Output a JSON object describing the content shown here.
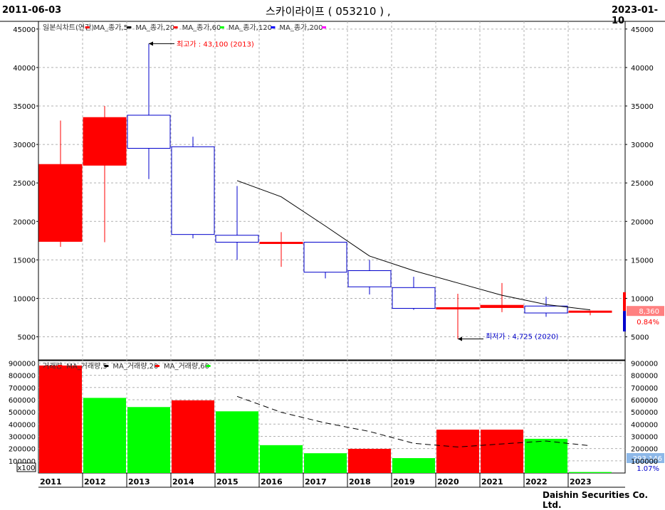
{
  "header": {
    "start_date": "2011-06-03",
    "title": "스카이라이프 ( 053210 ) ,",
    "end_date": "2023-01-10"
  },
  "footer": {
    "credit": "Daishin Securities Co. Ltd."
  },
  "colors": {
    "up": "#ff0000",
    "down": "#0000cc",
    "ma_line": "#000000",
    "vol_up": "#ff0000",
    "vol_down": "#00ff00",
    "tag_price_bg": "#ff8080",
    "tag_vol_bg": "#8db8e8"
  },
  "chart_data": [
    {
      "type": "candlestick",
      "legend": [
        {
          "label": "일본식차트(연간)",
          "color": "#ff0000"
        },
        {
          "label": "MA_종가,5",
          "color": "#000000"
        },
        {
          "label": "MA_종가,20",
          "color": "#ff0000"
        },
        {
          "label": "MA_종가,60",
          "color": "#00ff00"
        },
        {
          "label": "MA_종가,120",
          "color": "#0000ff"
        },
        {
          "label": "MA_종가,200",
          "color": "#ff00ff"
        }
      ],
      "ylim": [
        2000,
        46000
      ],
      "yticks": [
        5000,
        10000,
        15000,
        20000,
        25000,
        30000,
        35000,
        40000,
        45000
      ],
      "candles": [
        {
          "year": "2011",
          "open": 17400,
          "high": 33100,
          "low": 16700,
          "close": 27400
        },
        {
          "year": "2012",
          "open": 27300,
          "high": 35000,
          "low": 17300,
          "close": 33500
        },
        {
          "year": "2013",
          "open": 33800,
          "high": 43100,
          "low": 25500,
          "close": 29500
        },
        {
          "year": "2014",
          "open": 29700,
          "high": 31000,
          "low": 17800,
          "close": 18300
        },
        {
          "year": "2015",
          "open": 18200,
          "high": 24600,
          "low": 15000,
          "close": 17300
        },
        {
          "year": "2016",
          "open": 17300,
          "high": 18600,
          "low": 14100,
          "close": 17300
        },
        {
          "year": "2017",
          "open": 17300,
          "high": 17300,
          "low": 12600,
          "close": 13400
        },
        {
          "year": "2018",
          "open": 13600,
          "high": 15000,
          "low": 10500,
          "close": 11500
        },
        {
          "year": "2019",
          "open": 11400,
          "high": 12800,
          "low": 8500,
          "close": 8700
        },
        {
          "year": "2020",
          "open": 8700,
          "high": 10600,
          "low": 4725,
          "close": 8800
        },
        {
          "year": "2021",
          "open": 8800,
          "high": 12000,
          "low": 8200,
          "close": 9100
        },
        {
          "year": "2022",
          "open": 9000,
          "high": 10200,
          "low": 7600,
          "close": 8100
        },
        {
          "year": "2023",
          "open": 8200,
          "high": 8400,
          "low": 7800,
          "close": 8360
        }
      ],
      "ma_line": [
        {
          "year": "2015",
          "value": 25300
        },
        {
          "year": "2016",
          "value": 23200
        },
        {
          "year": "2017",
          "value": 19400
        },
        {
          "year": "2018",
          "value": 15500
        },
        {
          "year": "2019",
          "value": 13600
        },
        {
          "year": "2020",
          "value": 12000
        },
        {
          "year": "2021",
          "value": 10400
        },
        {
          "year": "2022",
          "value": 9200
        },
        {
          "year": "2023",
          "value": 8500
        }
      ],
      "annotations": {
        "high_label": "최고가 : 43,100 (2013)",
        "high_value": 43100,
        "high_year": "2013",
        "low_label": "최저가 : 4,725 (2020)",
        "low_value": 4725,
        "low_year": "2020"
      },
      "last_tag": {
        "value": "8,360",
        "pct": "0.84%",
        "price": 8360
      }
    },
    {
      "type": "bar",
      "legend": [
        {
          "label": "거래량",
          "color": "#ff0000"
        },
        {
          "label": "MA_거래량,5",
          "color": "#000000"
        },
        {
          "label": "MA_거래량,20",
          "color": "#ff0000"
        },
        {
          "label": "MA_거래량,60",
          "color": "#00ff00"
        }
      ],
      "ylim": [
        0,
        920000
      ],
      "yticks": [
        100000,
        200000,
        300000,
        400000,
        500000,
        600000,
        700000,
        800000,
        900000
      ],
      "unit_label": "x100",
      "categories": [
        "2011",
        "2012",
        "2013",
        "2014",
        "2015",
        "2016",
        "2017",
        "2018",
        "2019",
        "2020",
        "2021",
        "2022",
        "2023"
      ],
      "values": [
        880000,
        615000,
        540000,
        595000,
        505000,
        228000,
        162000,
        198000,
        122000,
        355000,
        355000,
        280000,
        8000
      ],
      "up": [
        true,
        false,
        false,
        true,
        false,
        false,
        false,
        true,
        false,
        true,
        true,
        false,
        false
      ],
      "ma_line": [
        {
          "year": "2015",
          "value": 627000
        },
        {
          "year": "2016",
          "value": 497000
        },
        {
          "year": "2017",
          "value": 410000
        },
        {
          "year": "2018",
          "value": 340000
        },
        {
          "year": "2019",
          "value": 243000
        },
        {
          "year": "2020",
          "value": 213000
        },
        {
          "year": "2021",
          "value": 238000
        },
        {
          "year": "2022",
          "value": 262000
        },
        {
          "year": "2023",
          "value": 223000
        }
      ],
      "last_tag": {
        "value": "293,146",
        "pct": "1.07%"
      }
    }
  ]
}
